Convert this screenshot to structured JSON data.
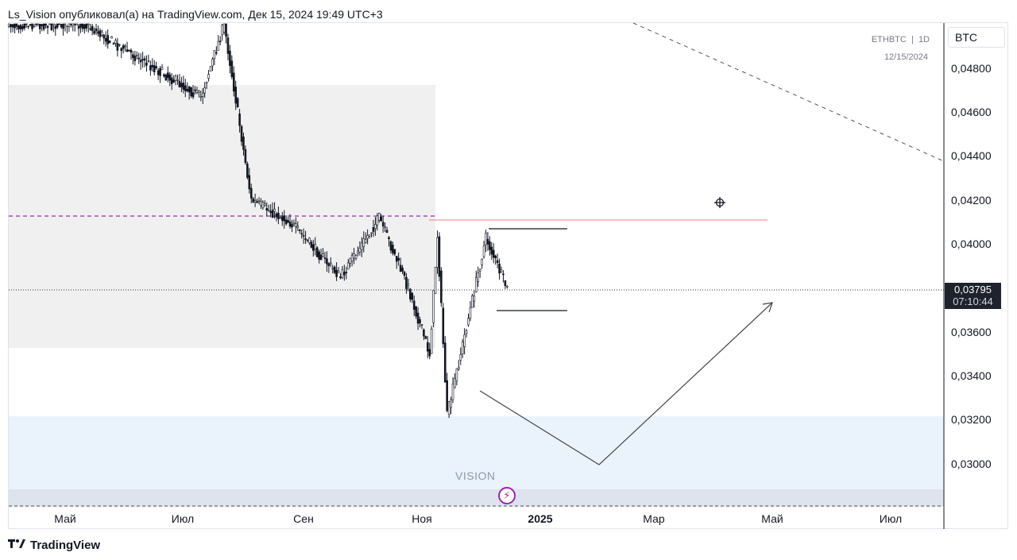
{
  "header": {
    "title": "Ls_Vision опубликовал(а) на TradingView.com, Дек 15, 2024 19:49 UTC+3"
  },
  "symbol": {
    "pair": "ETHBTC",
    "interval": "1D",
    "date": "12/15/2024",
    "quote_currency": "BTC"
  },
  "last_price": {
    "price": "0,03795",
    "countdown": "07:10:44"
  },
  "annotation": {
    "watermark": "VISION"
  },
  "footer": {
    "brand": "TradingView"
  },
  "icons": {
    "brand_logo": "tradingview-logo-icon",
    "alert": "lightning-icon",
    "crosshair": "crosshair-icon"
  },
  "colors": {
    "candle": "#131722",
    "gray_zone": "#f0f0f0",
    "blue_zone": "#eaf2fc",
    "purple_dashed": "#9c27b0",
    "pink_line": "#f08080",
    "price_tag_bg": "#1e222d"
  },
  "chart_data": {
    "type": "candlestick",
    "symbol": "ETHBTC",
    "interval": "1D",
    "x_ticks": [
      "Май",
      "Июл",
      "Сен",
      "Ноя",
      "2025",
      "Мар",
      "Май",
      "Июл"
    ],
    "y_ticks": [
      "0,04800",
      "0,04600",
      "0,04400",
      "0,04200",
      "0,04000",
      "0,03600",
      "0,03400",
      "0,03200",
      "0,03000"
    ],
    "ylim": [
      0.0283,
      0.05
    ],
    "last_price": 0.03795,
    "grid": false,
    "levels": {
      "purple_dashed": 0.04125,
      "pink_line": 0.0411,
      "range_top": 0.04075,
      "range_bottom": 0.037,
      "gray_zone_top": 0.0472,
      "gray_zone_bottom": 0.03525,
      "blue_zone_top": 0.03215,
      "blue_zone_bottom": 0.0288
    },
    "segments": [
      {
        "from": [
          "2024-04-01",
          0.05
        ],
        "to": [
          "2024-05-11",
          0.05
        ]
      },
      {
        "from": [
          "2024-05-11",
          0.05
        ],
        "to": [
          "2024-07-10",
          0.0467
        ]
      },
      {
        "from": [
          "2024-07-10",
          0.0467
        ],
        "to": [
          "2024-07-22",
          0.05
        ]
      },
      {
        "from": [
          "2024-07-22",
          0.05
        ],
        "to": [
          "2024-08-05",
          0.042
        ]
      },
      {
        "from": [
          "2024-08-05",
          0.042
        ],
        "to": [
          "2024-08-25",
          0.041
        ]
      },
      {
        "from": [
          "2024-08-25",
          0.041
        ],
        "to": [
          "2024-09-20",
          0.0385
        ]
      },
      {
        "from": [
          "2024-09-20",
          0.0385
        ],
        "to": [
          "2024-10-10",
          0.0412
        ]
      },
      {
        "from": [
          "2024-10-10",
          0.0412
        ],
        "to": [
          "2024-10-25",
          0.038
        ]
      },
      {
        "from": [
          "2024-10-25",
          0.038
        ],
        "to": [
          "2024-11-05",
          0.035
        ]
      },
      {
        "from": [
          "2024-11-05",
          0.035
        ],
        "to": [
          "2024-11-09",
          0.0404
        ]
      },
      {
        "from": [
          "2024-11-09",
          0.0404
        ],
        "to": [
          "2024-11-14",
          0.0322
        ]
      },
      {
        "from": [
          "2024-11-14",
          0.0322
        ],
        "to": [
          "2024-12-04",
          0.0403
        ]
      },
      {
        "from": [
          "2024-12-04",
          0.0403
        ],
        "to": [
          "2024-12-15",
          0.03795
        ]
      }
    ],
    "projection": [
      {
        "date": "2024-11-27",
        "price": 0.03345
      },
      {
        "date": "2025-02-08",
        "price": 0.02998
      },
      {
        "date": "2025-05-02",
        "price": 0.0374
      }
    ],
    "trendline": [
      {
        "date": "2025-02-12",
        "price": 0.05
      },
      {
        "date": "2025-08-01",
        "price": 0.0438
      }
    ]
  }
}
